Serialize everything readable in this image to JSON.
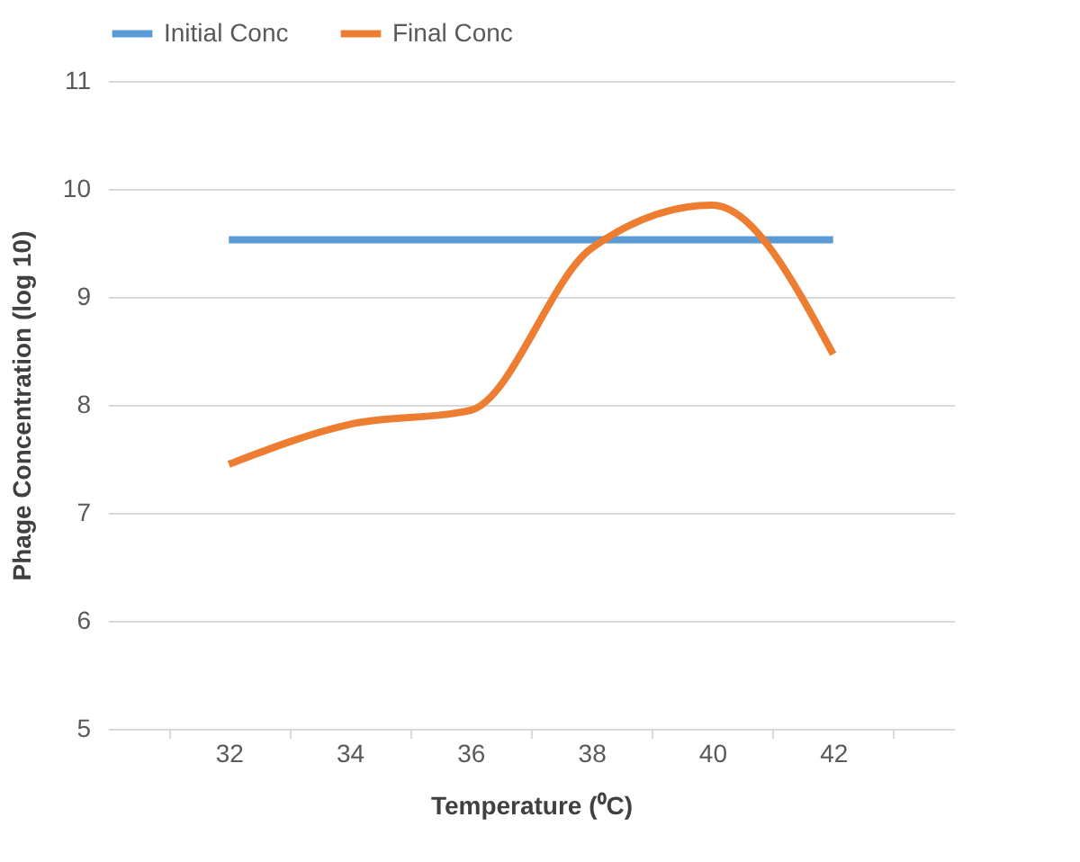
{
  "chart_data": {
    "type": "line",
    "xlabel": "Temperature (⁰C)",
    "ylabel": "Phage Concentration (log 10)",
    "categories": [
      "32",
      "34",
      "36",
      "38",
      "40",
      "42"
    ],
    "series": [
      {
        "name": "Initial Conc",
        "color": "#5b9bd5",
        "values": [
          9.53,
          9.53,
          9.53,
          9.53,
          9.53,
          9.53
        ]
      },
      {
        "name": "Final Conc",
        "color": "#ed7d31",
        "values": [
          7.45,
          7.82,
          7.95,
          9.45,
          9.85,
          8.47
        ]
      }
    ],
    "ylim": [
      5,
      11
    ],
    "yticks": [
      5,
      6,
      7,
      8,
      9,
      10,
      11
    ],
    "grid": "y",
    "legend": "top",
    "marker": "none",
    "line_style": "solid"
  }
}
